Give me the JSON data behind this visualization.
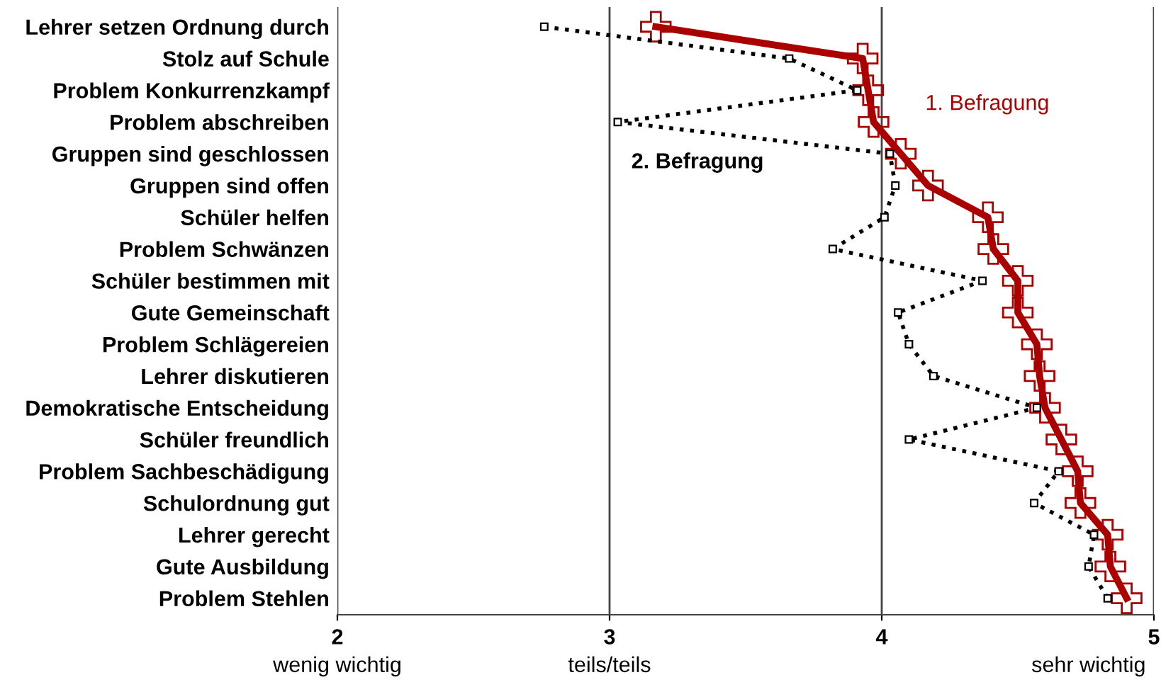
{
  "chart_data": {
    "type": "line",
    "orientation": "horizontal",
    "categories": [
      "Lehrer setzen Ordnung durch",
      "Stolz auf Schule",
      "Problem Konkurrenzkampf",
      "Problem abschreiben",
      "Gruppen sind geschlossen",
      "Gruppen sind offen",
      "Schüler helfen",
      "Problem Schwänzen",
      "Schüler bestimmen mit",
      "Gute Gemeinschaft",
      "Problem Schlägereien",
      "Lehrer diskutieren",
      "Demokratische Entscheidung",
      "Schüler freundlich",
      "Problem Sachbeschädigung",
      "Schulordnung gut",
      "Lehrer gerecht",
      "Gute Ausbildung",
      "Problem Stehlen"
    ],
    "series": [
      {
        "name": "1. Befragung",
        "color": "#aa0000",
        "marker": "cross",
        "line_style": "solid",
        "values": [
          3.17,
          3.93,
          3.95,
          3.97,
          4.07,
          4.17,
          4.39,
          4.41,
          4.5,
          4.5,
          4.57,
          4.58,
          4.6,
          4.66,
          4.72,
          4.73,
          4.83,
          4.84,
          4.9
        ]
      },
      {
        "name": "2. Befragung",
        "color": "#000000",
        "marker": "square",
        "line_style": "dotted",
        "values": [
          2.76,
          3.66,
          3.91,
          3.03,
          4.03,
          4.05,
          4.01,
          3.82,
          4.37,
          4.06,
          4.1,
          4.19,
          4.57,
          4.1,
          4.65,
          4.56,
          4.78,
          4.76,
          4.83
        ]
      }
    ],
    "xlim": [
      2,
      5
    ],
    "xticks": [
      2,
      3,
      4,
      5
    ],
    "annotations": [
      "wenig wichtig",
      "teils/teils",
      "sehr wichtig"
    ],
    "grid": "x",
    "legend": false
  }
}
